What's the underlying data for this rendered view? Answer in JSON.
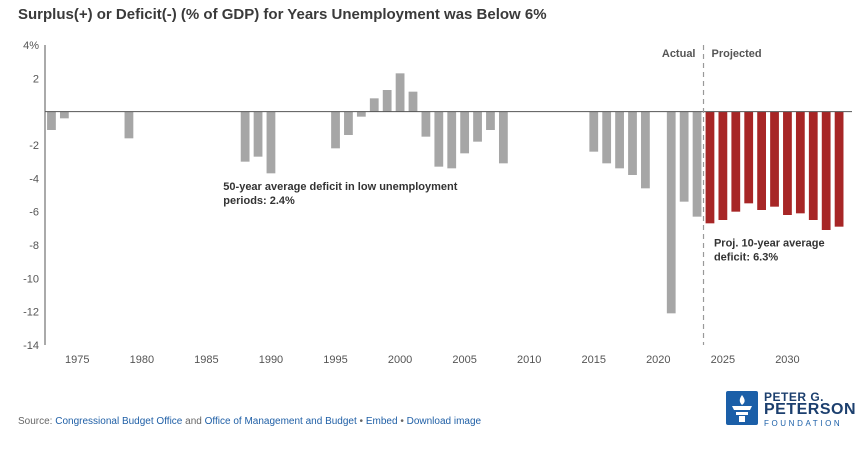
{
  "header": {
    "title": "Surplus(+) or Deficit(-) (% of GDP) for Years Unemployment was Below 6%"
  },
  "footer": {
    "source_prefix": "Source:",
    "cbo_link": "Congressional Budget Office",
    "and_text": "and",
    "omb_link": "Office of Management and Budget",
    "bullet": "•",
    "embed_link": "Embed",
    "download_link": "Download image"
  },
  "logo": {
    "line1": "PETER G.",
    "line2": "PETERSON",
    "line3": "FOUNDATION",
    "icon": "torch-icon",
    "color": "#1b5fa8"
  },
  "chart_data": {
    "type": "bar",
    "ylim": [
      -14,
      4
    ],
    "xlim": [
      1972.5,
      2035
    ],
    "y_ticks": [
      {
        "value": 4,
        "label": "4%"
      },
      {
        "value": 2,
        "label": "2"
      },
      {
        "value": -2,
        "label": "-2"
      },
      {
        "value": -4,
        "label": "-4"
      },
      {
        "value": -6,
        "label": "-6"
      },
      {
        "value": -8,
        "label": "-8"
      },
      {
        "value": -10,
        "label": "-10"
      },
      {
        "value": -12,
        "label": "-12"
      },
      {
        "value": -14,
        "label": "-14"
      }
    ],
    "x_ticks": [
      1975,
      1980,
      1985,
      1990,
      1995,
      2000,
      2005,
      2010,
      2015,
      2020,
      2025,
      2030
    ],
    "divider_x": 2023.5,
    "divider_labels": {
      "left": "Actual",
      "right": "Projected"
    },
    "colors": {
      "actual": "#a6a6a6",
      "projected": "#a72626",
      "axis": "#555555",
      "divider": "#999999"
    },
    "series": [
      {
        "name": "Actual",
        "points": [
          {
            "x": 1973,
            "y": -1.1
          },
          {
            "x": 1974,
            "y": -0.4
          },
          {
            "x": 1979,
            "y": -1.6
          },
          {
            "x": 1988,
            "y": -3.0
          },
          {
            "x": 1989,
            "y": -2.7
          },
          {
            "x": 1990,
            "y": -3.7
          },
          {
            "x": 1995,
            "y": -2.2
          },
          {
            "x": 1996,
            "y": -1.4
          },
          {
            "x": 1997,
            "y": -0.3
          },
          {
            "x": 1998,
            "y": 0.8
          },
          {
            "x": 1999,
            "y": 1.3
          },
          {
            "x": 2000,
            "y": 2.3
          },
          {
            "x": 2001,
            "y": 1.2
          },
          {
            "x": 2002,
            "y": -1.5
          },
          {
            "x": 2003,
            "y": -3.3
          },
          {
            "x": 2004,
            "y": -3.4
          },
          {
            "x": 2005,
            "y": -2.5
          },
          {
            "x": 2006,
            "y": -1.8
          },
          {
            "x": 2007,
            "y": -1.1
          },
          {
            "x": 2008,
            "y": -3.1
          },
          {
            "x": 2015,
            "y": -2.4
          },
          {
            "x": 2016,
            "y": -3.1
          },
          {
            "x": 2017,
            "y": -3.4
          },
          {
            "x": 2018,
            "y": -3.8
          },
          {
            "x": 2019,
            "y": -4.6
          },
          {
            "x": 2021,
            "y": -12.1
          },
          {
            "x": 2022,
            "y": -5.4
          },
          {
            "x": 2023,
            "y": -6.3
          }
        ]
      },
      {
        "name": "Projected",
        "points": [
          {
            "x": 2024,
            "y": -6.7
          },
          {
            "x": 2025,
            "y": -6.5
          },
          {
            "x": 2026,
            "y": -6.0
          },
          {
            "x": 2027,
            "y": -5.5
          },
          {
            "x": 2028,
            "y": -5.9
          },
          {
            "x": 2029,
            "y": -5.7
          },
          {
            "x": 2030,
            "y": -6.2
          },
          {
            "x": 2031,
            "y": -6.1
          },
          {
            "x": 2032,
            "y": -6.5
          },
          {
            "x": 2033,
            "y": -7.1
          },
          {
            "x": 2034,
            "y": -6.9
          }
        ]
      }
    ],
    "annotations": [
      {
        "lines": [
          "50-year average deficit in low unemployment",
          "periods: 2.4%"
        ],
        "x": 1986,
        "y": -4.7
      },
      {
        "lines": [
          "Proj. 10-year average",
          "deficit: 6.3%"
        ],
        "x": 2024,
        "y": -8.1
      }
    ]
  }
}
